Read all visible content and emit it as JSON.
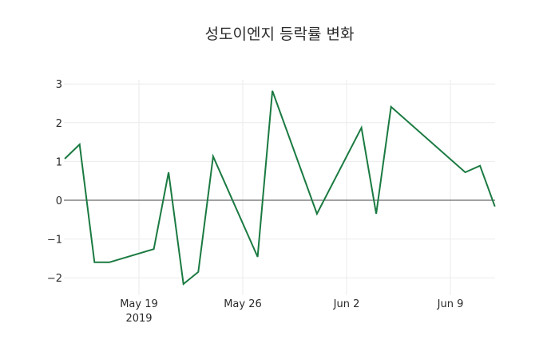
{
  "chart_data": {
    "type": "line",
    "title": "성도이엔지 등락률 변화",
    "xlabel": "",
    "ylabel": "",
    "x": [
      "2019-05-14",
      "2019-05-15",
      "2019-05-16",
      "2019-05-17",
      "2019-05-20",
      "2019-05-21",
      "2019-05-22",
      "2019-05-23",
      "2019-05-24",
      "2019-05-27",
      "2019-05-28",
      "2019-05-31",
      "2019-06-03",
      "2019-06-04",
      "2019-06-05",
      "2019-06-10",
      "2019-06-11",
      "2019-06-12"
    ],
    "series": [
      {
        "name": "등락률",
        "color": "#1a7a41",
        "values": [
          1.07,
          1.44,
          -1.6,
          -1.6,
          -1.26,
          0.72,
          -2.16,
          -1.85,
          1.13,
          -1.46,
          2.82,
          -0.35,
          1.87,
          -0.35,
          2.41,
          0.72,
          0.89,
          -0.16
        ]
      }
    ],
    "ylim": [
      -2.3,
      3.1
    ],
    "yticks": [
      3,
      2,
      1,
      0,
      -1,
      -2
    ],
    "ytick_labels": [
      "3",
      "2",
      "1",
      "0",
      "−1",
      "−2"
    ],
    "xticks": [
      "2019-05-19",
      "2019-05-26",
      "2019-06-02",
      "2019-06-09"
    ],
    "xtick_labels": [
      "May 19",
      "May 26",
      "Jun 2",
      "Jun 9"
    ],
    "xtick_sublabel": "2019",
    "grid": true,
    "legend": false
  }
}
